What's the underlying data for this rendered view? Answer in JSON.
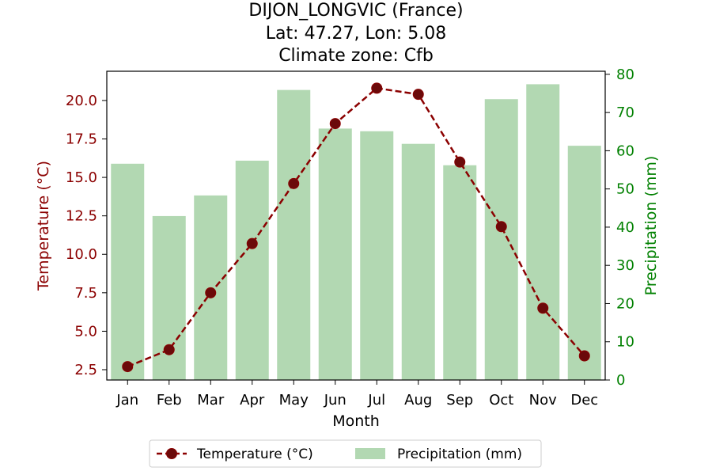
{
  "chart_data": {
    "type": "bar+line",
    "title_lines": [
      "DIJON_LONGVIC (France)",
      "Lat: 47.27, Lon: 5.08",
      "Climate zone: Cfb"
    ],
    "xlabel": "Month",
    "categories": [
      "Jan",
      "Feb",
      "Mar",
      "Apr",
      "May",
      "Jun",
      "Jul",
      "Aug",
      "Sep",
      "Oct",
      "Nov",
      "Dec"
    ],
    "temperature": {
      "name": "Temperature (°C)",
      "ylabel": "Temperature (°C)",
      "axis": "left",
      "color": "#8b0000",
      "marker_color": "#6b0a0a",
      "style": "dashed line with circle markers",
      "values": [
        2.7,
        3.8,
        7.5,
        10.7,
        14.6,
        18.5,
        20.8,
        20.4,
        16.0,
        11.8,
        6.5,
        3.4
      ],
      "ylim": [
        1.83,
        21.9
      ],
      "ticks": [
        2.5,
        5.0,
        7.5,
        10.0,
        12.5,
        15.0,
        17.5,
        20.0
      ],
      "tick_labels": [
        "2.5",
        "5.0",
        "7.5",
        "10.0",
        "12.5",
        "15.0",
        "17.5",
        "20.0"
      ]
    },
    "precipitation": {
      "name": "Precipitation (mm)",
      "ylabel": "Precipitation (mm)",
      "axis": "right",
      "color": "#b2d8b2",
      "label_color": "#008000",
      "values": [
        56.6,
        42.9,
        48.3,
        57.4,
        75.9,
        65.8,
        65.1,
        61.8,
        56.2,
        73.5,
        77.4,
        61.3
      ],
      "ylim": [
        0,
        80.8
      ],
      "ticks": [
        0,
        10,
        20,
        30,
        40,
        50,
        60,
        70,
        80
      ],
      "tick_labels": [
        "0",
        "10",
        "20",
        "30",
        "40",
        "50",
        "60",
        "70",
        "80"
      ]
    },
    "legend": {
      "placement": "bottom-center",
      "entries": [
        "Temperature (°C)",
        "Precipitation (mm)"
      ]
    },
    "grid": false
  }
}
